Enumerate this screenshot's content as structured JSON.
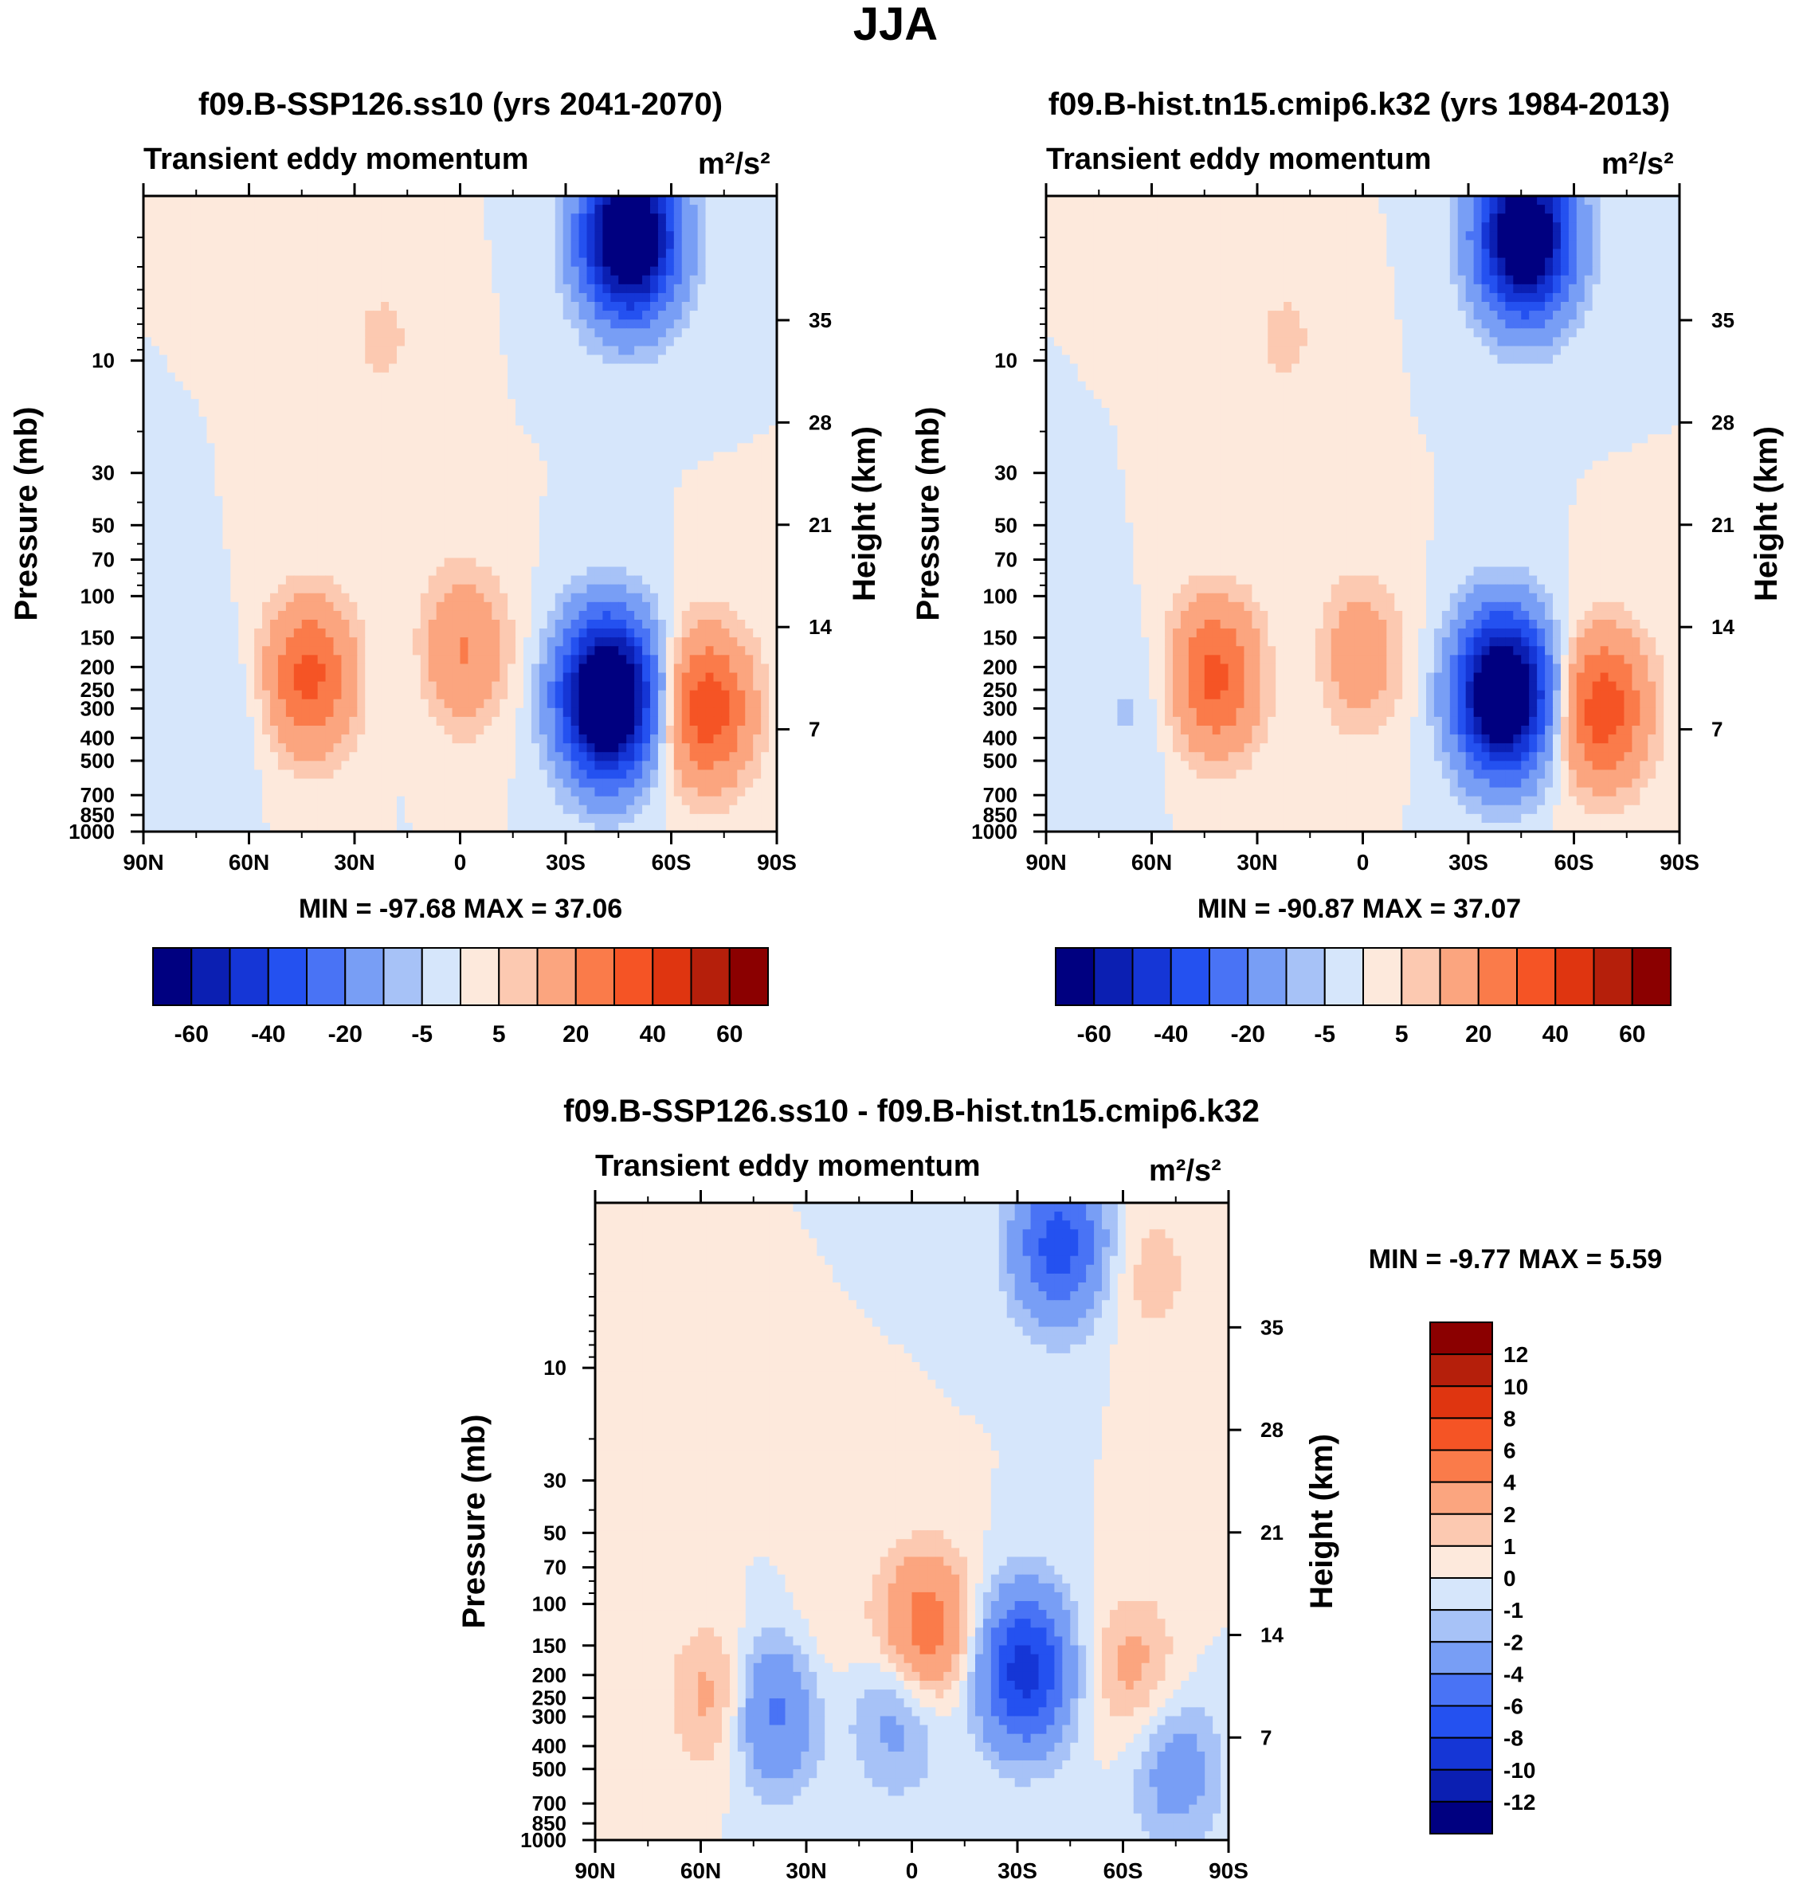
{
  "page": {
    "title": "JJA"
  },
  "chart_data": [
    {
      "type": "heatmap",
      "id": "p1",
      "title": "f09.B-SSP126.ss10 (yrs 2041-2070)",
      "subtitle": "Transient eddy momentum",
      "units": "m²/s²",
      "ylabel": "Pressure (mb)",
      "y2label": "Height (km)",
      "xticks": [
        "90N",
        "60N",
        "30N",
        "0",
        "30S",
        "60S",
        "90S"
      ],
      "yticks": [
        "10",
        "30",
        "50",
        "70",
        "100",
        "150",
        "200",
        "250",
        "300",
        "400",
        "500",
        "700",
        "850",
        "1000"
      ],
      "y2ticks": [
        "35",
        "28",
        "21",
        "14",
        "7"
      ],
      "stats": "MIN = -97.68  MAX =  37.06",
      "min": -97.68,
      "max": 37.06,
      "levels": [
        -70,
        -60,
        -50,
        -40,
        -30,
        -20,
        -10,
        -5,
        0,
        5,
        10,
        20,
        30,
        40,
        50,
        60
      ],
      "colorbar_labels": [
        "-60",
        "-40",
        "-20",
        "-5",
        "5",
        "20",
        "40",
        "60"
      ],
      "features": [
        {
          "lat": -42,
          "p": 270,
          "amp": -97
        },
        {
          "lat": -48,
          "p": 3,
          "amp": -90
        },
        {
          "lat": 43,
          "p": 220,
          "amp": 33
        },
        {
          "lat": -70,
          "p": 300,
          "amp": 37
        },
        {
          "lat": 0,
          "p": 170,
          "amp": 22
        },
        {
          "lat": 22,
          "p": 8,
          "amp": 6
        },
        {
          "lat": 65,
          "p": 300,
          "amp": -6
        },
        {
          "lat": 12,
          "p": 190,
          "amp": -4
        }
      ]
    },
    {
      "type": "heatmap",
      "id": "p2",
      "title": "f09.B-hist.tn15.cmip6.k32 (yrs 1984-2013)",
      "subtitle": "Transient eddy momentum",
      "units": "m²/s²",
      "ylabel": "Pressure (mb)",
      "y2label": "Height (km)",
      "xticks": [
        "90N",
        "60N",
        "30N",
        "0",
        "30S",
        "60S",
        "90S"
      ],
      "yticks": [
        "10",
        "30",
        "50",
        "70",
        "100",
        "150",
        "200",
        "250",
        "300",
        "400",
        "500",
        "700",
        "850",
        "1000"
      ],
      "y2ticks": [
        "35",
        "28",
        "21",
        "14",
        "7"
      ],
      "stats": "MIN = -90.87  MAX =  37.07",
      "min": -90.87,
      "max": 37.07,
      "levels": [
        -70,
        -60,
        -50,
        -40,
        -30,
        -20,
        -10,
        -5,
        0,
        5,
        10,
        20,
        30,
        40,
        50,
        60
      ],
      "colorbar_labels": [
        "-60",
        "-40",
        "-20",
        "-5",
        "5",
        "20",
        "40",
        "60"
      ],
      "features": [
        {
          "lat": -40,
          "p": 260,
          "amp": -90
        },
        {
          "lat": -46,
          "p": 3,
          "amp": -85
        },
        {
          "lat": 42,
          "p": 220,
          "amp": 33
        },
        {
          "lat": -68,
          "p": 300,
          "amp": 37
        },
        {
          "lat": 2,
          "p": 180,
          "amp": 18
        },
        {
          "lat": 22,
          "p": 8,
          "amp": 6
        },
        {
          "lat": 65,
          "p": 300,
          "amp": -6
        },
        {
          "lat": 13,
          "p": 190,
          "amp": -4
        }
      ]
    },
    {
      "type": "heatmap",
      "id": "p3",
      "title": "f09.B-SSP126.ss10 - f09.B-hist.tn15.cmip6.k32",
      "subtitle": "Transient eddy momentum",
      "units": "m²/s²",
      "ylabel": "Pressure (mb)",
      "y2label": "Height (km)",
      "xticks": [
        "90N",
        "60N",
        "30N",
        "0",
        "30S",
        "60S",
        "90S"
      ],
      "yticks": [
        "10",
        "30",
        "50",
        "70",
        "100",
        "150",
        "200",
        "250",
        "300",
        "400",
        "500",
        "700",
        "850",
        "1000"
      ],
      "y2ticks": [
        "35",
        "28",
        "21",
        "14",
        "7"
      ],
      "stats": "MIN =  -9.77  MAX =   5.59",
      "min": -9.77,
      "max": 5.59,
      "levels": [
        -14,
        -12,
        -10,
        -8,
        -6,
        -4,
        -2,
        -1,
        0,
        1,
        2,
        4,
        6,
        8,
        10,
        12
      ],
      "colorbar_labels": [
        "12",
        "10",
        "8",
        "6",
        "4",
        "2",
        "1",
        "0",
        "-1",
        "-2",
        "-4",
        "-6",
        "-8",
        "-10",
        "-12"
      ],
      "features": [
        {
          "lat": -32,
          "p": 190,
          "amp": -9
        },
        {
          "lat": -42,
          "p": 3,
          "amp": -7
        },
        {
          "lat": -75,
          "p": 500,
          "amp": -3
        },
        {
          "lat": 40,
          "p": 280,
          "amp": -5
        },
        {
          "lat": 4,
          "p": 290,
          "amp": -3
        },
        {
          "lat": -4,
          "p": 130,
          "amp": 5.5
        },
        {
          "lat": 55,
          "p": 250,
          "amp": 3
        },
        {
          "lat": -63,
          "p": 190,
          "amp": 2.5
        },
        {
          "lat": -68,
          "p": 4,
          "amp": 1.5
        },
        {
          "lat": 25,
          "p": 145,
          "amp": 1
        }
      ]
    }
  ],
  "colors": {
    "diverging": [
      "#000080",
      "#0b1fb2",
      "#1536d6",
      "#2451f0",
      "#4973f5",
      "#789ef5",
      "#a7c2f7",
      "#d6e6fb",
      "#fde9dc",
      "#fcc9b1",
      "#fba57f",
      "#fa7b4a",
      "#f55425",
      "#df3510",
      "#b51f0b",
      "#8b0000"
    ]
  }
}
